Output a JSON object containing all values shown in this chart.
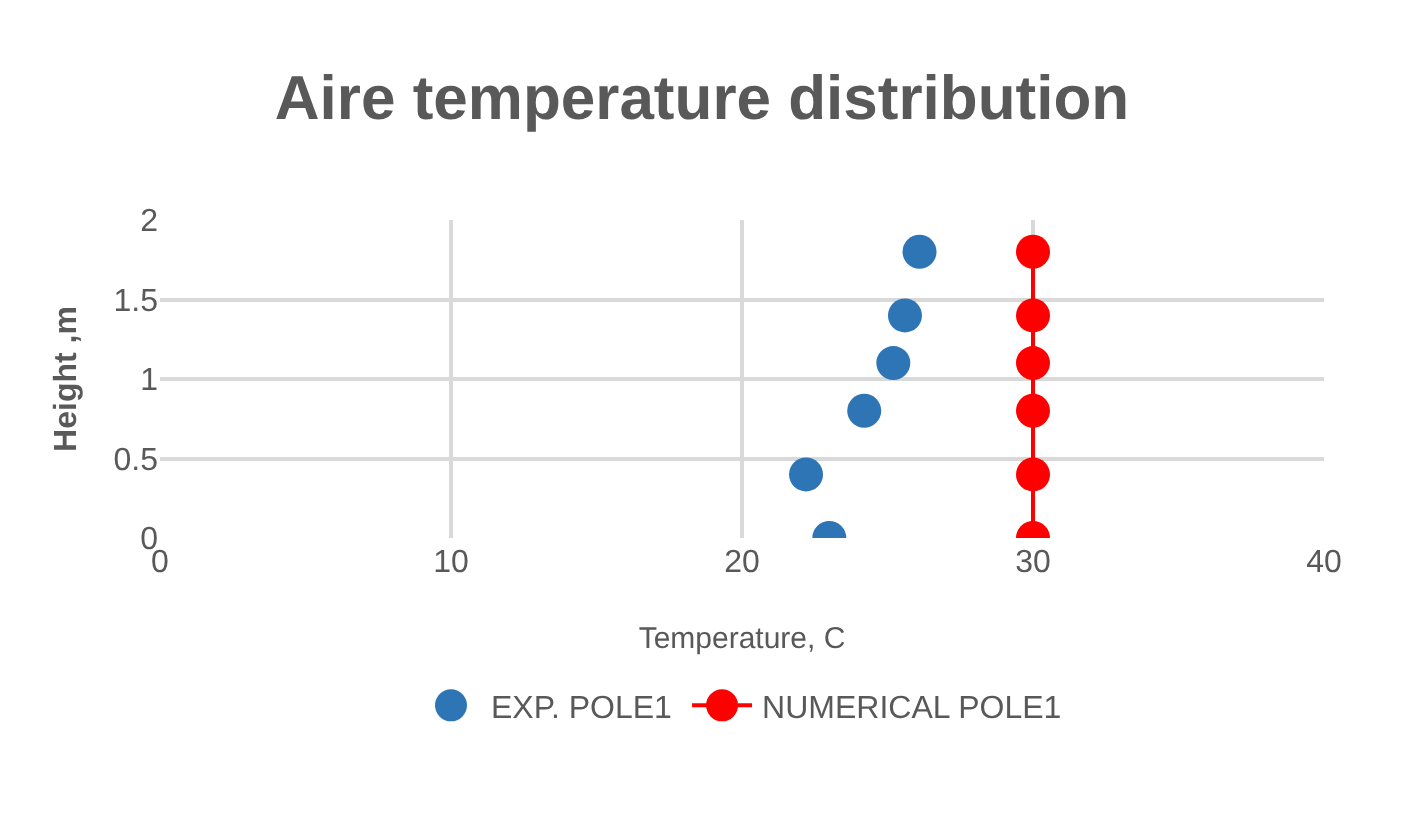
{
  "chart_data": {
    "type": "scatter",
    "title": "Aire temperature distribution",
    "xlabel": "Temperature, C",
    "ylabel": "Height ,m",
    "xlim": [
      0,
      40
    ],
    "xticks": [
      0,
      10,
      20,
      30,
      40
    ],
    "ylim": [
      0,
      2
    ],
    "yticks": [
      0,
      0.5,
      1,
      1.5,
      2
    ],
    "grid": true,
    "legend": "bottom",
    "marker": "circle",
    "series": [
      {
        "name": "EXP. POLE1",
        "color": "#2e75b6",
        "x": [
          23,
          22.2,
          24.2,
          25.2,
          25.6,
          26.1
        ],
        "values": [
          0,
          0.4,
          0.8,
          1.1,
          1.4,
          1.8
        ]
      },
      {
        "name": "NUMERICAL POLE1",
        "type": "line",
        "color": "#ff0000",
        "x": [
          30,
          30,
          30,
          30,
          30,
          30
        ],
        "values": [
          0,
          0.4,
          0.8,
          1.1,
          1.4,
          1.8
        ]
      }
    ]
  }
}
